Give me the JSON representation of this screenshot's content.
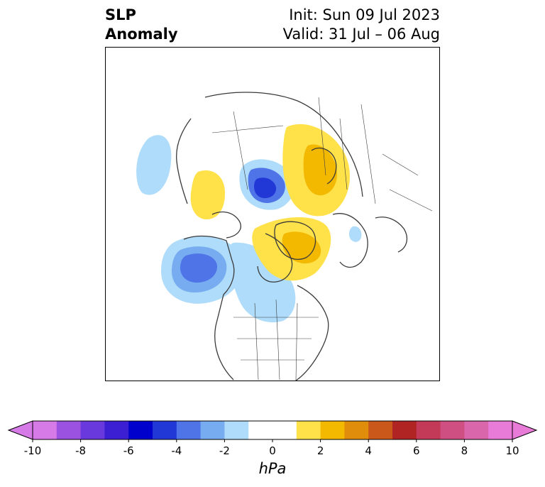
{
  "title": {
    "left_line1": "SLP",
    "left_line2": "Anomaly",
    "right_line1": "Init: Sun 09 Jul 2023",
    "right_line2": "Valid: 31 Jul – 06 Aug"
  },
  "colorbar": {
    "unit": "hPa",
    "ticks": [
      "-10",
      "-8",
      "-6",
      "-4",
      "-2",
      "0",
      "2",
      "4",
      "6",
      "8",
      "10"
    ],
    "colors": [
      "#d67ae8",
      "#9c52e0",
      "#6a39de",
      "#3c1fd3",
      "#0000cc",
      "#2238d6",
      "#4f74e8",
      "#77adf0",
      "#aedcfa",
      "#ffffff",
      "#ffffff",
      "#ffe14a",
      "#f3b800",
      "#e08d0c",
      "#c9581a",
      "#b02424",
      "#c23a58",
      "#d04f82",
      "#d965ab",
      "#e87ad8"
    ]
  },
  "map": {
    "layers": [
      {
        "name": "west-pacific-low",
        "color": "#aedcfa"
      },
      {
        "name": "gulf-of-alaska-low-outer",
        "color": "#aedcfa"
      },
      {
        "name": "gulf-of-alaska-low-mid",
        "color": "#77adf0"
      },
      {
        "name": "gulf-of-alaska-low-core",
        "color": "#4f74e8"
      },
      {
        "name": "canada-low",
        "color": "#aedcfa"
      },
      {
        "name": "arctic-low-outer",
        "color": "#aedcfa"
      },
      {
        "name": "arctic-low-mid",
        "color": "#4f74e8"
      },
      {
        "name": "arctic-low-core",
        "color": "#2238d6"
      },
      {
        "name": "siberia-high",
        "color": "#ffe14a"
      },
      {
        "name": "scandinavia-high",
        "color": "#ffe14a"
      },
      {
        "name": "greenland-high",
        "color": "#ffe14a"
      },
      {
        "name": "scandinavia-high-core",
        "color": "#f3b800"
      },
      {
        "name": "greenland-high-core",
        "color": "#f3b800"
      },
      {
        "name": "europe-small-low",
        "color": "#aedcfa"
      }
    ],
    "coastline_color": "#3a3a3a"
  }
}
